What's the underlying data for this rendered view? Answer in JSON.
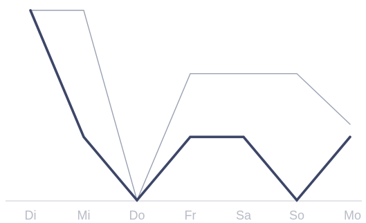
{
  "chart_data": {
    "type": "line",
    "categories": [
      "Di",
      "Mi",
      "Do",
      "Fr",
      "Sa",
      "So",
      "Mo"
    ],
    "series": [
      {
        "values": [
          3,
          3,
          0,
          2,
          2,
          2,
          1.2
        ],
        "color": "#9aa1b2"
      },
      {
        "values": [
          3,
          1,
          0,
          1,
          1,
          0,
          1
        ],
        "color": "#3d4668"
      }
    ],
    "ylim": [
      0,
      3
    ],
    "grid": false,
    "legend": "none"
  }
}
